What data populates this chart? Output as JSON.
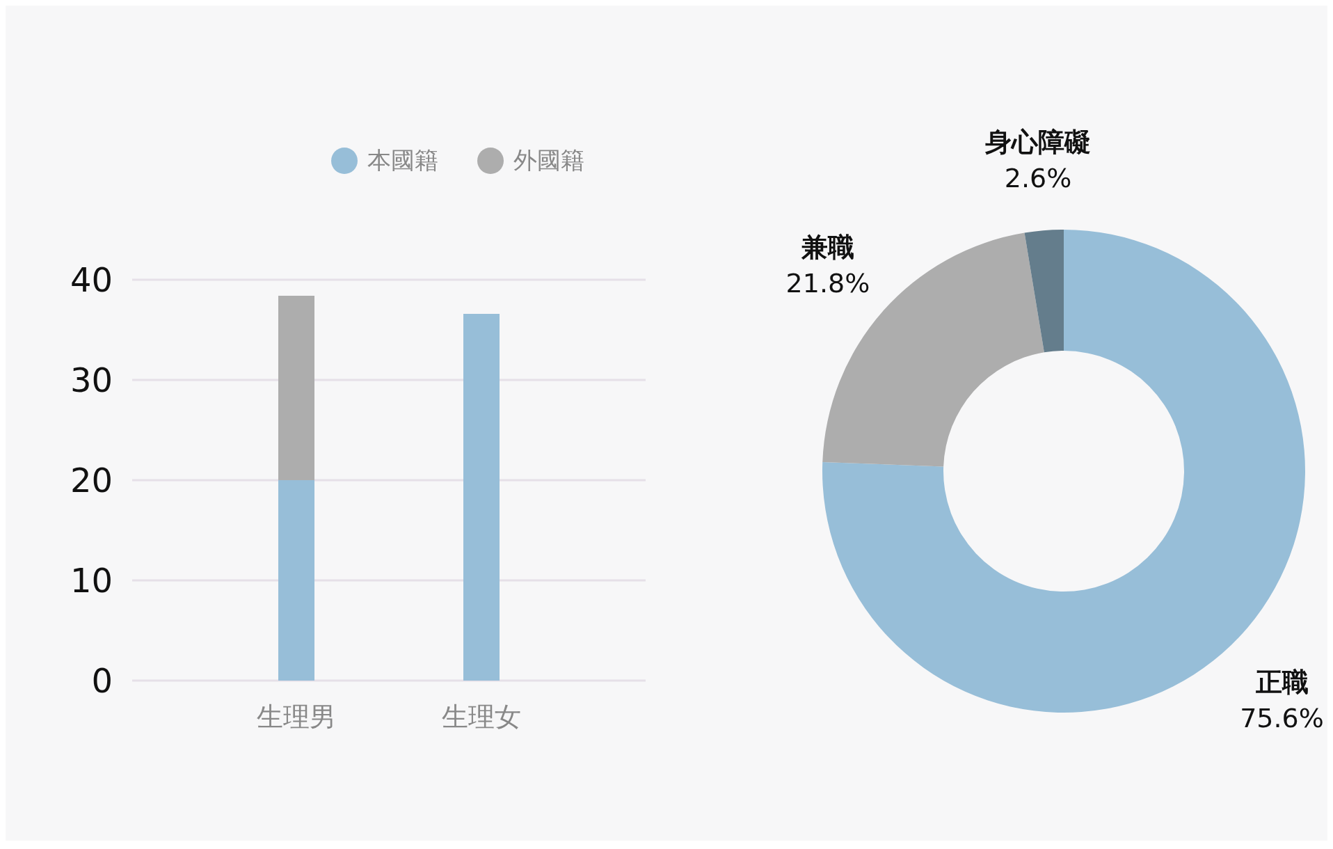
{
  "chart_data": [
    {
      "type": "bar",
      "categories": [
        "生理男",
        "生理女"
      ],
      "stacked": true,
      "ylim": [
        0,
        40
      ],
      "yticks": [
        0,
        10,
        20,
        30,
        40
      ],
      "grid": "y",
      "legend": "top",
      "series": [
        {
          "name": "本國籍",
          "color": "#97bed8",
          "values": [
            20,
            36.6
          ]
        },
        {
          "name": "外國籍",
          "color": "#adadad",
          "values": [
            18.4,
            0
          ]
        }
      ]
    },
    {
      "type": "donut",
      "categories": [
        "正職",
        "兼職",
        "身心障礙"
      ],
      "values": [
        75.6,
        21.8,
        2.6
      ],
      "colors": [
        "#97bed8",
        "#adadad",
        "#647d8c"
      ],
      "value_labels": [
        "75.6%",
        "21.8%",
        "2.6%"
      ]
    }
  ]
}
